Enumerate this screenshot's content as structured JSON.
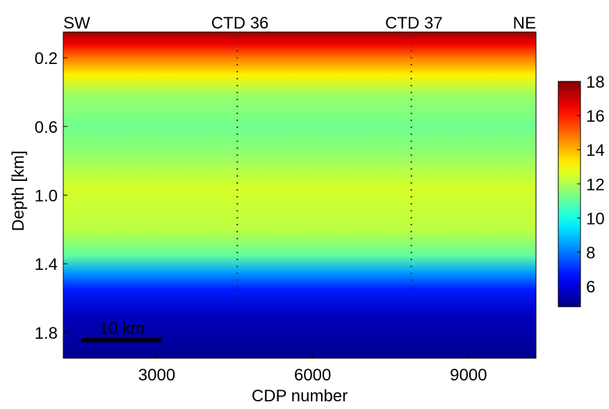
{
  "chart_data": {
    "type": "heatmap",
    "title": "",
    "xlabel": "CDP number",
    "ylabel": "Depth [km]",
    "xlim": [
      1200,
      10300
    ],
    "ylim": [
      0.05,
      1.95
    ],
    "y_reversed": true,
    "x_ticks": [
      {
        "value": 3000,
        "label": "3000"
      },
      {
        "value": 6000,
        "label": "6000"
      },
      {
        "value": 9000,
        "label": "9000"
      }
    ],
    "y_ticks": [
      {
        "value": 0.2,
        "label": "0.2"
      },
      {
        "value": 0.6,
        "label": "0.6"
      },
      {
        "value": 1.0,
        "label": "1.0"
      },
      {
        "value": 1.4,
        "label": "1.4"
      },
      {
        "value": 1.8,
        "label": "1.8"
      }
    ],
    "top_labels": [
      {
        "value": 1200,
        "label": "SW",
        "anchor": "start"
      },
      {
        "value": 4600,
        "label": "CTD 36",
        "anchor": "middle"
      },
      {
        "value": 7950,
        "label": "CTD 37",
        "anchor": "middle"
      },
      {
        "value": 10300,
        "label": "NE",
        "anchor": "end"
      }
    ],
    "vertical_markers": [
      {
        "name": "CTD 36",
        "cdp": 4550
      },
      {
        "name": "CTD 37",
        "cdp": 7900
      }
    ],
    "colorbar": {
      "range": [
        4.8,
        18
      ],
      "ticks": [
        6,
        8,
        10,
        12,
        14,
        16,
        18
      ],
      "colormap": "jet",
      "grid": false
    },
    "scale_bar": {
      "label": "10 km",
      "cdp_start": 1550,
      "cdp_end": 3100,
      "depth": 1.845
    },
    "depth_profile": [
      {
        "depth": 0.05,
        "value": 17.6
      },
      {
        "depth": 0.12,
        "value": 16.5
      },
      {
        "depth": 0.2,
        "value": 14.8
      },
      {
        "depth": 0.3,
        "value": 13.2
      },
      {
        "depth": 0.42,
        "value": 11.7
      },
      {
        "depth": 0.6,
        "value": 11.2
      },
      {
        "depth": 0.75,
        "value": 11.6
      },
      {
        "depth": 0.95,
        "value": 12.5
      },
      {
        "depth": 1.2,
        "value": 12.2
      },
      {
        "depth": 1.35,
        "value": 11.0
      },
      {
        "depth": 1.45,
        "value": 8.5
      },
      {
        "depth": 1.55,
        "value": 6.8
      },
      {
        "depth": 1.7,
        "value": 5.6
      },
      {
        "depth": 1.95,
        "value": 5.0
      }
    ]
  }
}
